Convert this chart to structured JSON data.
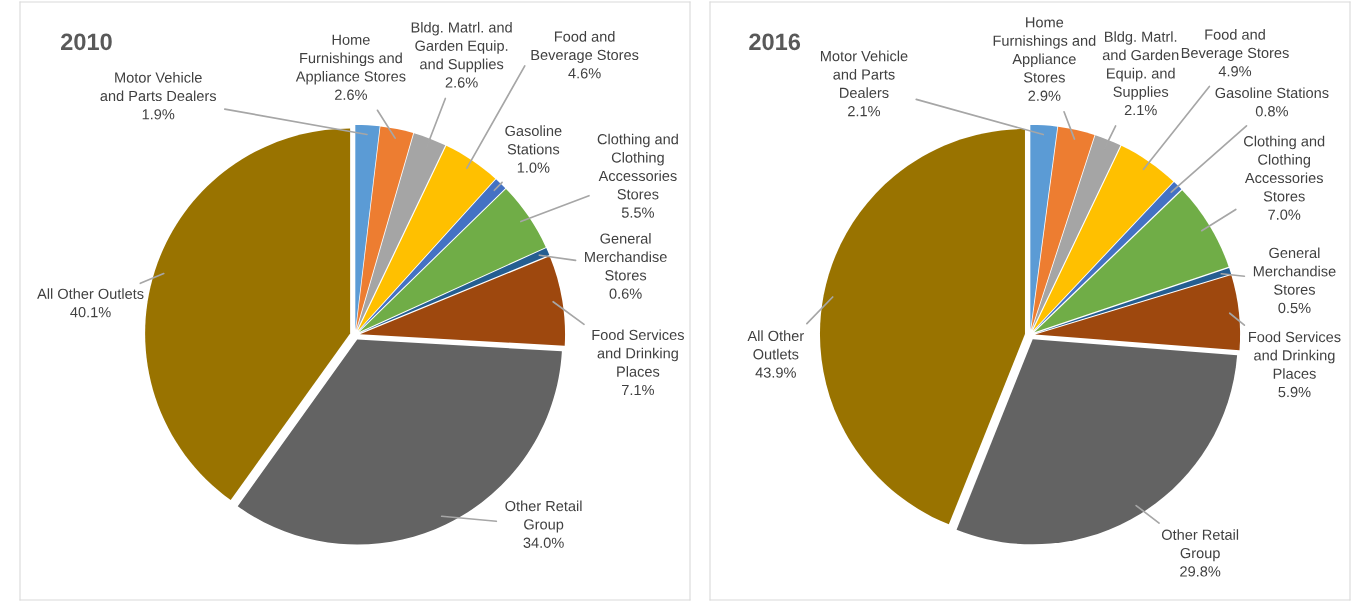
{
  "chart_data": [
    {
      "type": "pie",
      "title": "2010",
      "categories": [
        "Motor Vehicle\nand Parts Dealers",
        "Home\nFurnishings and\nAppliance Stores",
        "Bldg. Matrl. and\nGarden Equip.\nand Supplies",
        "Food and\nBeverage Stores",
        "Gasoline\nStations",
        "Clothing and\nClothing\nAccessories\nStores",
        "General\nMerchandise\nStores",
        "Food Services\nand Drinking\nPlaces",
        "Other Retail\nGroup",
        "All Other Outlets"
      ],
      "values": [
        1.9,
        2.6,
        2.6,
        4.6,
        1.0,
        5.5,
        0.6,
        7.1,
        34.0,
        40.1
      ],
      "value_labels": [
        "1.9%",
        "2.6%",
        "2.6%",
        "4.6%",
        "1.0%",
        "5.5%",
        "0.6%",
        "7.1%",
        "34.0%",
        "40.1%"
      ],
      "colors": [
        "#5b9bd5",
        "#ed7d31",
        "#a5a5a5",
        "#ffc000",
        "#4472c4",
        "#70ad47",
        "#255e91",
        "#9e480e",
        "#636363",
        "#997300"
      ]
    },
    {
      "type": "pie",
      "title": "2016",
      "categories": [
        "Motor Vehicle\nand Parts\nDealers",
        "Home\nFurnishings and\nAppliance\nStores",
        "Bldg. Matrl.\nand Garden\nEquip. and\nSupplies",
        "Food and\nBeverage Stores",
        "Gasoline Stations",
        "Clothing and\nClothing\nAccessories\nStores",
        "General\nMerchandise\nStores",
        "Food Services\nand Drinking\nPlaces",
        "Other Retail\nGroup",
        "All Other\nOutlets"
      ],
      "values": [
        2.1,
        2.9,
        2.1,
        4.9,
        0.8,
        7.0,
        0.5,
        5.9,
        29.8,
        43.9
      ],
      "value_labels": [
        "2.1%",
        "2.9%",
        "2.1%",
        "4.9%",
        "0.8%",
        "7.0%",
        "0.5%",
        "5.9%",
        "29.8%",
        "43.9%"
      ],
      "colors": [
        "#5b9bd5",
        "#ed7d31",
        "#a5a5a5",
        "#ffc000",
        "#4472c4",
        "#70ad47",
        "#255e91",
        "#9e480e",
        "#636363",
        "#997300"
      ]
    }
  ]
}
